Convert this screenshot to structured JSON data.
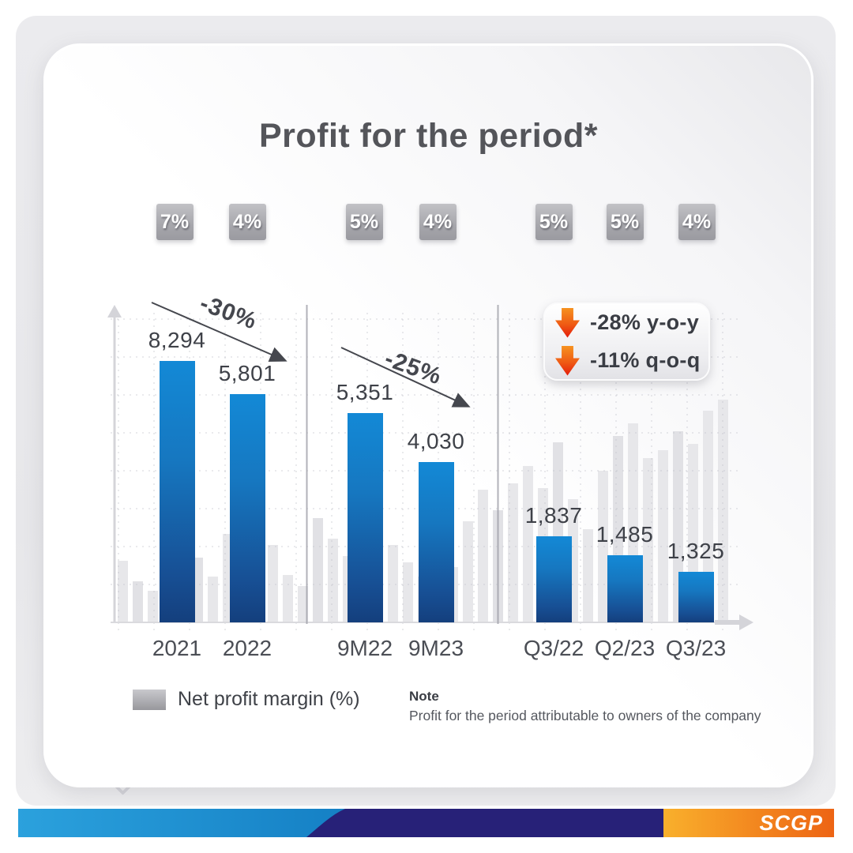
{
  "page": {
    "title": "Profit for the period*"
  },
  "chart_data": {
    "type": "bar",
    "title": "Profit for the period*",
    "categories": [
      "2021",
      "2022",
      "9M22",
      "9M23",
      "Q3/22",
      "Q2/23",
      "Q3/23"
    ],
    "series": [
      {
        "name": "Profit for the period",
        "values": [
          8294,
          5801,
          5351,
          4030,
          1837,
          1485,
          1325
        ],
        "labels": [
          "8,294",
          "5,801",
          "5,351",
          "4,030",
          "1,837",
          "1,485",
          "1,325"
        ]
      },
      {
        "name": "Net profit margin (%)",
        "values": [
          7,
          4,
          5,
          4,
          5,
          5,
          4
        ],
        "labels": [
          "7%",
          "4%",
          "5%",
          "4%",
          "5%",
          "5%",
          "4%"
        ]
      }
    ],
    "groups": [
      {
        "categories": [
          "2021",
          "2022"
        ],
        "change_label": "-30%"
      },
      {
        "categories": [
          "9M22",
          "9M23"
        ],
        "change_label": "-25%"
      },
      {
        "categories": [
          "Q3/22",
          "Q2/23",
          "Q3/23"
        ],
        "change_label": ""
      }
    ],
    "callout": {
      "items": [
        {
          "label": "-28% y-o-y"
        },
        {
          "label": "-11% q-o-q"
        }
      ]
    },
    "legend_entries": [
      "Net profit margin (%)"
    ],
    "grid": "dotted",
    "ylim": [
      0,
      10000
    ],
    "xlabel": "",
    "ylabel": ""
  },
  "legend": {
    "label": "Net profit margin (%)"
  },
  "note": {
    "heading": "Note",
    "body": "Profit for the period attributable to owners of the company"
  },
  "footer": {
    "brand": "SCGP"
  },
  "colors": {
    "bar_top": "#1389d6",
    "bar_bottom": "#143f7d",
    "badge_gray": "#a8a8ad",
    "annotation_gray": "#45474e",
    "callout_arrow_top": "#f6921e",
    "callout_arrow_bottom": "#e31b0c",
    "ribbon_blue": "#1f93d4",
    "ribbon_navy": "#272178",
    "ribbon_orange_left": "#f9b02c",
    "ribbon_orange_right": "#ed6414"
  }
}
